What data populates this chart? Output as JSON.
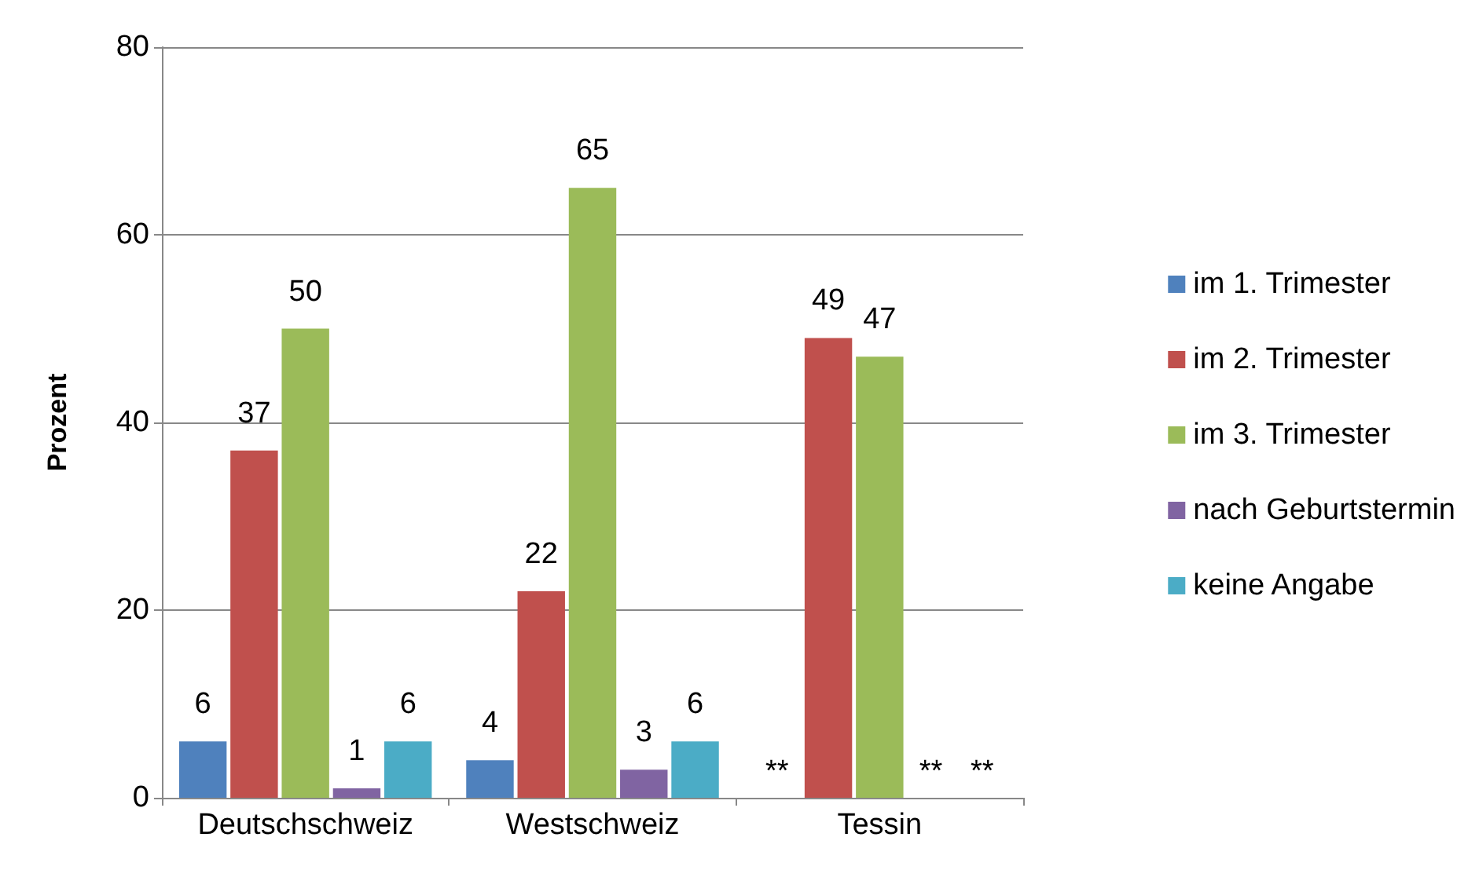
{
  "chart_data": {
    "type": "bar",
    "ylabel": "Prozent",
    "categories": [
      "Deutschschweiz",
      "Westschweiz",
      "Tessin"
    ],
    "series": [
      {
        "name": "im 1. Trimester",
        "color": "#4f81bd",
        "values": [
          6,
          4,
          null
        ],
        "value_labels": [
          "6",
          "4",
          "**"
        ]
      },
      {
        "name": "im 2. Trimester",
        "color": "#c0504d",
        "values": [
          37,
          22,
          49
        ],
        "value_labels": [
          "37",
          "22",
          "49"
        ]
      },
      {
        "name": "im 3. Trimester",
        "color": "#9bbb59",
        "values": [
          50,
          65,
          47
        ],
        "value_labels": [
          "50",
          "65",
          "47"
        ]
      },
      {
        "name": "nach Geburtstermin",
        "color": "#8064a2",
        "values": [
          1,
          3,
          null
        ],
        "value_labels": [
          "1",
          "3",
          "**"
        ]
      },
      {
        "name": "keine Angabe",
        "color": "#4bacc6",
        "values": [
          6,
          6,
          null
        ],
        "value_labels": [
          "6",
          "6",
          "**"
        ]
      }
    ],
    "ylim": [
      0,
      80
    ],
    "yticks": [
      0,
      20,
      40,
      60,
      80
    ],
    "grid": "y",
    "legend": "right"
  }
}
